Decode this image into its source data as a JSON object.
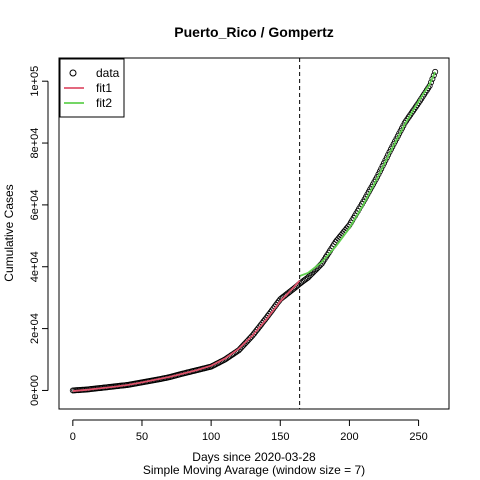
{
  "chart_data": {
    "type": "scatter",
    "title": "Puerto_Rico / Gompertz",
    "xlabel": "Days since 2020-03-28",
    "subxlabel": "Simple Moving Avarage (window size = 7)",
    "ylabel": "Cumulative Cases",
    "xlim": [
      -10,
      272
    ],
    "ylim": [
      -6000,
      107500
    ],
    "x_ticks": [
      0,
      50,
      100,
      150,
      200,
      250
    ],
    "x_tick_labels": [
      "0",
      "50",
      "100",
      "150",
      "200",
      "250"
    ],
    "y_ticks": [
      0,
      20000,
      40000,
      60000,
      80000,
      100000
    ],
    "y_tick_labels": [
      "0e+00",
      "2e+04",
      "4e+04",
      "6e+04",
      "8e+04",
      "1e+05"
    ],
    "vline_x": 164,
    "legend_position": "top-left",
    "colors": {
      "data": "#000000",
      "fit1": "#DF536B",
      "fit2": "#61D04F"
    },
    "series": [
      {
        "name": "data",
        "style": "points",
        "x_start": 0,
        "x_end": 262,
        "anchors_x": [
          0,
          10,
          20,
          30,
          40,
          50,
          60,
          70,
          80,
          90,
          100,
          110,
          115,
          120,
          130,
          140,
          150,
          160,
          164,
          170,
          180,
          190,
          200,
          210,
          220,
          230,
          240,
          250,
          258,
          262
        ],
        "anchors_y": [
          0,
          300,
          800,
          1300,
          1800,
          2600,
          3400,
          4300,
          5500,
          6600,
          7700,
          10000,
          11500,
          13000,
          17800,
          23500,
          29500,
          33000,
          34500,
          36500,
          41000,
          48000,
          53500,
          61000,
          69000,
          78000,
          86500,
          93000,
          98500,
          103000
        ]
      },
      {
        "name": "fit1",
        "style": "line",
        "x": [
          0,
          10,
          20,
          30,
          40,
          50,
          60,
          70,
          80,
          90,
          100,
          110,
          120,
          130,
          140,
          150,
          160,
          164
        ],
        "y": [
          -200,
          200,
          700,
          1200,
          1800,
          2600,
          3500,
          4400,
          5500,
          6600,
          8000,
          10300,
          13500,
          17800,
          23000,
          28800,
          33500,
          35500
        ]
      },
      {
        "name": "fit2",
        "style": "line",
        "x": [
          164,
          170,
          180,
          190,
          200,
          210,
          220,
          230,
          240,
          250,
          258,
          262
        ],
        "y": [
          37000,
          38000,
          41500,
          46500,
          52500,
          60000,
          68500,
          77500,
          86000,
          93500,
          99000,
          103000
        ]
      }
    ]
  }
}
